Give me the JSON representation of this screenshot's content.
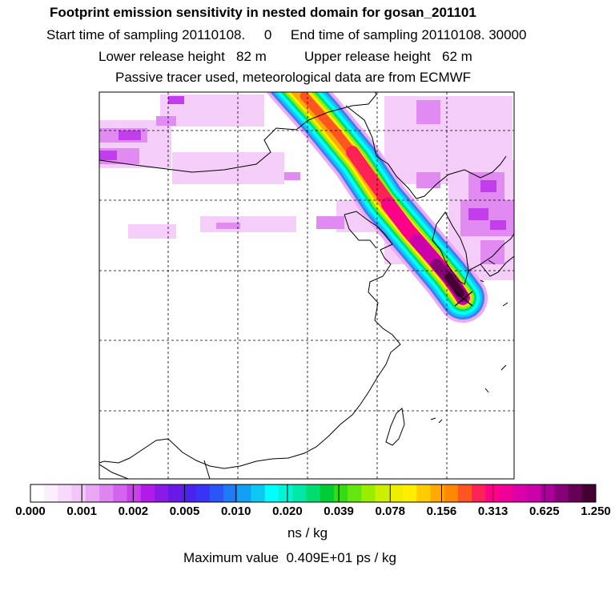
{
  "header": {
    "title": "Footprint emission sensitivity in nested domain for gosan_201101",
    "sampling_line": "Start time of sampling 20110108.     0     End time of sampling 20110108. 30000",
    "height_line": "Lower release height   82 m          Upper release height   62 m",
    "tracer_line": "Passive tracer used, meteorological data are from ECMWF"
  },
  "colorbar": {
    "colors": [
      "#ffffff",
      "#fbeefd",
      "#f7d9fb",
      "#f2c6f8",
      "#e8a6f5",
      "#de85f2",
      "#d463ef",
      "#c840ec",
      "#b21ae8",
      "#8a1ae6",
      "#6a1ae8",
      "#4a22f0",
      "#3a33f5",
      "#2b55f6",
      "#1f7bf5",
      "#12a0f4",
      "#0cc8f2",
      "#00ffff",
      "#00f4d4",
      "#00e8a8",
      "#00dc70",
      "#00cc33",
      "#33dd11",
      "#66e611",
      "#99ee00",
      "#ccee00",
      "#eeee00",
      "#ffee00",
      "#ffcc00",
      "#ffaa00",
      "#ff8800",
      "#ff5522",
      "#ff2255",
      "#ff0088",
      "#ee0099",
      "#dd00aa",
      "#cc00aa",
      "#aa0099",
      "#880077",
      "#660055",
      "#440033"
    ],
    "ticks": [
      "0.000",
      "0.001",
      "0.002",
      "0.005",
      "0.010",
      "0.020",
      "0.039",
      "0.078",
      "0.156",
      "0.313",
      "0.625",
      "1.250"
    ],
    "unit": "ns / kg"
  },
  "footer": {
    "maximum_value": "Maximum value  0.409E+01 ps / kg"
  }
}
